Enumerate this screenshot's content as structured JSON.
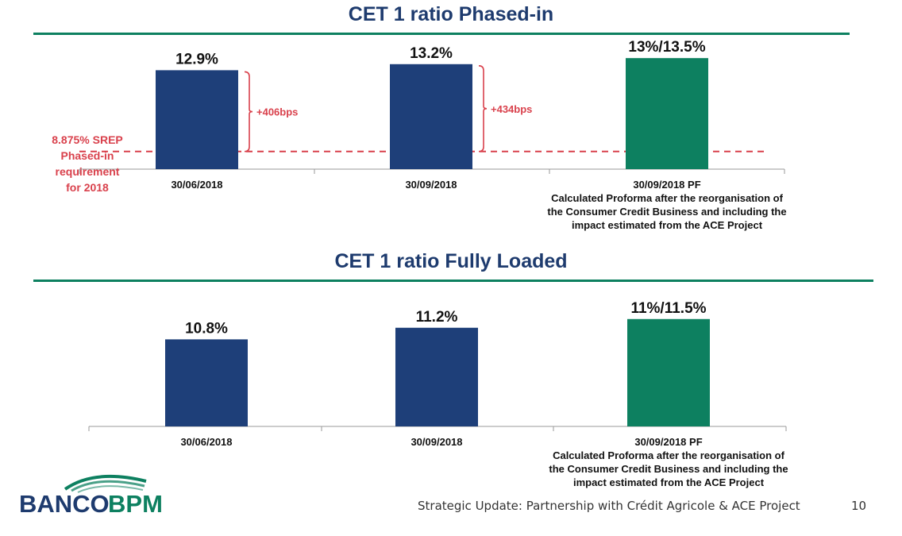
{
  "colors": {
    "blue": "#1e3f79",
    "green": "#0d8060",
    "red": "#d9414c",
    "title": "#1e3b6e"
  },
  "chart_data": [
    {
      "type": "bar",
      "title": "CET 1 ratio Phased-in",
      "categories": [
        "30/06/2018",
        "30/09/2018",
        "30/09/2018 PF"
      ],
      "category_notes": [
        "",
        "",
        "Calculated Proforma after the reorganisation of the Consumer Credit Business and including the impact estimated from the ACE Project"
      ],
      "values": [
        12.9,
        13.2,
        13.5
      ],
      "value_labels": [
        "12.9%",
        "13.2%",
        "13%/13.5%"
      ],
      "bar_colors": [
        "#1e3f79",
        "#1e3f79",
        "#0d8060"
      ],
      "ylim": [
        8.0,
        13.9
      ],
      "reference_line": {
        "value": 8.875,
        "label": [
          "8.875% SREP",
          "Phased-in",
          "requirement",
          "for 2018"
        ]
      },
      "annotations": [
        "+406bps",
        "+434bps"
      ]
    },
    {
      "type": "bar",
      "title": "CET 1 ratio Fully Loaded",
      "categories": [
        "30/06/2018",
        "30/09/2018",
        "30/09/2018 PF"
      ],
      "category_notes": [
        "",
        "",
        "Calculated Proforma after the reorganisation of the Consumer Credit Business and including the impact estimated from the ACE Project"
      ],
      "values": [
        10.8,
        11.2,
        11.5
      ],
      "value_labels": [
        "10.8%",
        "11.2%",
        "11%/11.5%"
      ],
      "bar_colors": [
        "#1e3f79",
        "#1e3f79",
        "#0d8060"
      ],
      "ylim": [
        7.8,
        11.85
      ]
    }
  ],
  "footer": {
    "logo_text_1": "BANCO",
    "logo_text_2": "BPM",
    "caption": "Strategic Update: Partnership with Crédit Agricole & ACE Project",
    "page_number": "10"
  }
}
